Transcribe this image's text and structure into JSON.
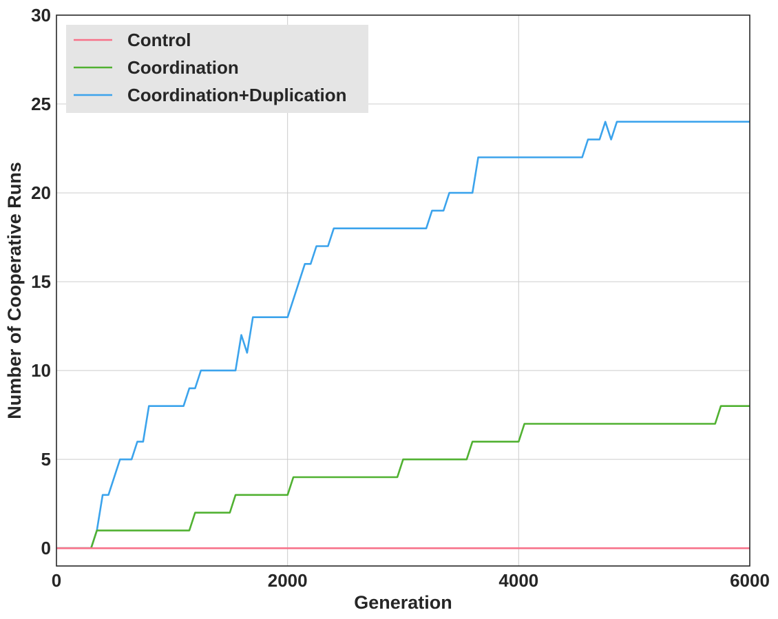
{
  "chart_data": {
    "type": "line",
    "title": "",
    "xlabel": "Generation",
    "ylabel": "Number of Cooperative Runs",
    "xlim": [
      0,
      6000
    ],
    "ylim": [
      -1,
      30
    ],
    "xticks": [
      0,
      2000,
      4000,
      6000
    ],
    "yticks": [
      0,
      5,
      10,
      15,
      20,
      25,
      30
    ],
    "xtick_labels": [
      "0",
      "2000",
      "4000",
      "6000"
    ],
    "ytick_labels": [
      "0",
      "5",
      "10",
      "15",
      "20",
      "25",
      "30"
    ],
    "grid": true,
    "legend_position": "top-left",
    "series": [
      {
        "name": "Control",
        "color": "#f77189",
        "x": [
          0,
          6000
        ],
        "y": [
          0,
          0
        ]
      },
      {
        "name": "Coordination",
        "color": "#50b131",
        "x": [
          0,
          300,
          350,
          1150,
          1200,
          1500,
          1550,
          2000,
          2050,
          2950,
          3000,
          3550,
          3600,
          4000,
          4050,
          5700,
          5750,
          6000
        ],
        "y": [
          0,
          0,
          1,
          1,
          2,
          2,
          3,
          3,
          4,
          4,
          5,
          5,
          6,
          6,
          7,
          7,
          8,
          8
        ]
      },
      {
        "name": "Coordination+Duplication",
        "color": "#3ba3ec",
        "x": [
          0,
          300,
          350,
          400,
          450,
          550,
          650,
          700,
          750,
          800,
          1100,
          1150,
          1200,
          1250,
          1550,
          1600,
          1650,
          1700,
          2000,
          2150,
          2200,
          2250,
          2350,
          2400,
          3200,
          3250,
          3350,
          3400,
          3600,
          3650,
          4550,
          4600,
          4700,
          4750,
          4800,
          4850,
          6000
        ],
        "y": [
          0,
          0,
          1,
          3,
          3,
          5,
          5,
          6,
          6,
          8,
          8,
          9,
          9,
          10,
          10,
          12,
          11,
          13,
          13,
          16,
          16,
          17,
          17,
          18,
          18,
          19,
          19,
          20,
          20,
          22,
          22,
          23,
          23,
          24,
          23,
          24,
          24
        ]
      }
    ]
  }
}
